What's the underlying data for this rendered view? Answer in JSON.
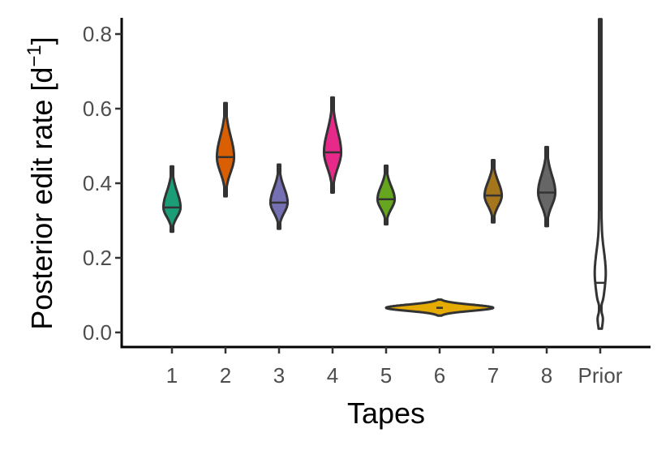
{
  "chart_data": {
    "type": "violin",
    "xlabel": "Tapes",
    "ylabel": "Posterior edit rate [d",
    "ylabel_superscript": "−1",
    "ylabel_close": "]",
    "ylim": [
      -0.04,
      0.84
    ],
    "yticks": [
      0.0,
      0.2,
      0.4,
      0.6,
      0.8
    ],
    "ytick_labels": [
      "0.0",
      "0.2",
      "0.4",
      "0.6",
      "0.8"
    ],
    "legend": "none",
    "grid": false,
    "categories": [
      "1",
      "2",
      "3",
      "4",
      "5",
      "6",
      "7",
      "8",
      "Prior"
    ],
    "series": [
      {
        "category": "1",
        "color": "#1b9e77",
        "min": 0.27,
        "max": 0.445,
        "median": 0.335,
        "width": 0.32
      },
      {
        "category": "2",
        "color": "#d95f02",
        "min": 0.365,
        "max": 0.615,
        "median": 0.47,
        "width": 0.32
      },
      {
        "category": "3",
        "color": "#7570b3",
        "min": 0.278,
        "max": 0.45,
        "median": 0.348,
        "width": 0.32
      },
      {
        "category": "4",
        "color": "#e7298a",
        "min": 0.375,
        "max": 0.63,
        "median": 0.483,
        "width": 0.32
      },
      {
        "category": "5",
        "color": "#66a61e",
        "min": 0.29,
        "max": 0.447,
        "median": 0.357,
        "width": 0.32
      },
      {
        "category": "6",
        "color": "#e6ab02",
        "min": 0.045,
        "max": 0.088,
        "median": 0.066,
        "width": 2.0
      },
      {
        "category": "7",
        "color": "#a6761d",
        "min": 0.295,
        "max": 0.462,
        "median": 0.367,
        "width": 0.32
      },
      {
        "category": "8",
        "color": "#666666",
        "min": 0.285,
        "max": 0.497,
        "median": 0.375,
        "width": 0.32
      },
      {
        "category": "Prior",
        "color": "#ffffff",
        "min": 0.01,
        "max": 0.84,
        "median": 0.133,
        "width": 0.16
      }
    ]
  }
}
